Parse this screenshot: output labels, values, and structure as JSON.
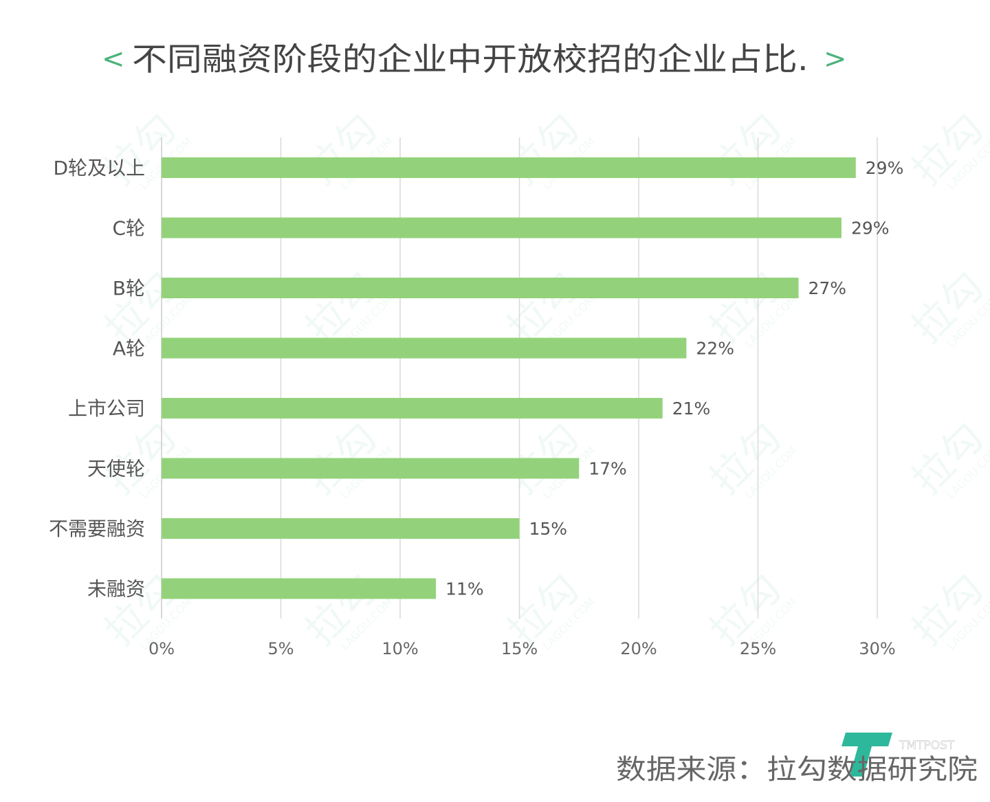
{
  "chart_data": {
    "type": "bar",
    "orientation": "horizontal",
    "title": "不同融资阶段的企业中开放校招的企业占比.",
    "title_bracket_left": "<",
    "title_bracket_right": ">",
    "categories": [
      "D轮及以上",
      "C轮",
      "B轮",
      "A轮",
      "上市公司",
      "天使轮",
      "不需要融资",
      "未融资"
    ],
    "values": [
      29.1,
      28.5,
      26.7,
      22.0,
      21.0,
      17.5,
      15.0,
      11.5
    ],
    "value_labels": [
      "29%",
      "29%",
      "27%",
      "22%",
      "21%",
      "17%",
      "15%",
      "11%"
    ],
    "x_ticks": [
      "0%",
      "5%",
      "10%",
      "15%",
      "20%",
      "25%",
      "30%"
    ],
    "xlim": [
      0,
      30
    ],
    "grid": true,
    "bar_color": "#93d27a",
    "grid_color": "#d9d9d9",
    "accent_color": "#4cb37c",
    "xlabel": "",
    "ylabel": ""
  },
  "source": "数据来源：拉勾数据研究院",
  "watermark": {
    "text": "拉勾",
    "sub": "LAGOU.COM"
  },
  "logo": {
    "text": "TMTPOST"
  }
}
